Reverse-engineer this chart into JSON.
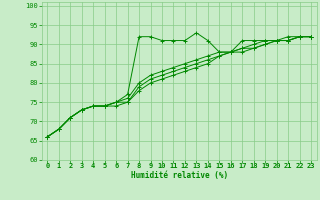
{
  "xlabel": "Humidité relative (%)",
  "xlim": [
    -0.5,
    23.5
  ],
  "ylim": [
    60,
    101
  ],
  "yticks": [
    60,
    65,
    70,
    75,
    80,
    85,
    90,
    95,
    100
  ],
  "xticks": [
    0,
    1,
    2,
    3,
    4,
    5,
    6,
    7,
    8,
    9,
    10,
    11,
    12,
    13,
    14,
    15,
    16,
    17,
    18,
    19,
    20,
    21,
    22,
    23
  ],
  "bg_color": "#c8ecc8",
  "grid_color": "#88cc88",
  "line_color": "#008800",
  "lines": [
    [
      66,
      68,
      71,
      73,
      74,
      74,
      75,
      77,
      92,
      92,
      91,
      91,
      91,
      93,
      91,
      88,
      88,
      91,
      91,
      91,
      91,
      92,
      92,
      92
    ],
    [
      66,
      68,
      71,
      73,
      74,
      74,
      75,
      76,
      80,
      82,
      83,
      84,
      85,
      86,
      87,
      88,
      88,
      89,
      90,
      91,
      91,
      91,
      92,
      92
    ],
    [
      66,
      68,
      71,
      73,
      74,
      74,
      75,
      75,
      79,
      81,
      82,
      83,
      84,
      85,
      86,
      87,
      88,
      89,
      89,
      90,
      91,
      91,
      92,
      92
    ],
    [
      66,
      68,
      71,
      73,
      74,
      74,
      74,
      75,
      78,
      80,
      81,
      82,
      83,
      84,
      85,
      87,
      88,
      88,
      89,
      90,
      91,
      91,
      92,
      92
    ]
  ]
}
